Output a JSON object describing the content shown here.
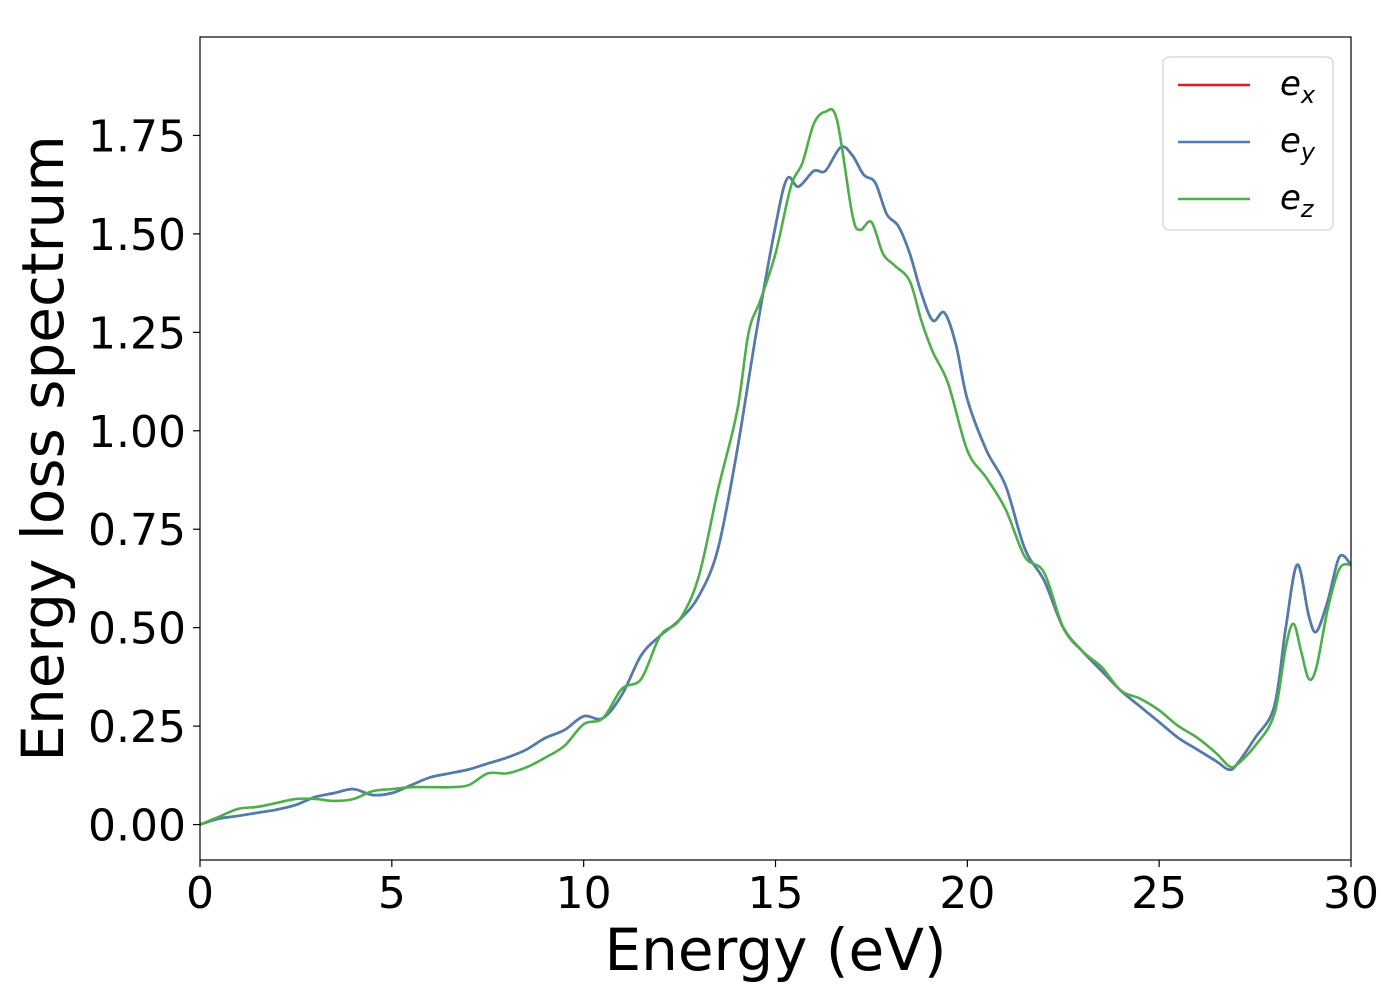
{
  "chart_data": {
    "type": "line",
    "title": "",
    "xlabel": "Energy (eV)",
    "ylabel": "Energy loss spectrum",
    "xlim": [
      0,
      30
    ],
    "ylim": [
      -0.09,
      2.0
    ],
    "xticks": [
      0,
      5,
      10,
      15,
      20,
      25,
      30
    ],
    "xtick_labels": [
      "0",
      "5",
      "10",
      "15",
      "20",
      "25",
      "30"
    ],
    "yticks": [
      0.0,
      0.25,
      0.5,
      0.75,
      1.0,
      1.25,
      1.5,
      1.75
    ],
    "ytick_labels": [
      "0.00",
      "0.25",
      "0.50",
      "0.75",
      "1.00",
      "1.25",
      "1.50",
      "1.75"
    ],
    "grid": false,
    "legend_position": "top-right",
    "series": [
      {
        "name": "e_x",
        "legend_base": "e",
        "legend_sub": "x",
        "color": "#e41a1c",
        "x": [
          0,
          0.5,
          1,
          1.5,
          2,
          2.5,
          3,
          3.5,
          4,
          4.5,
          5,
          5.5,
          6,
          6.5,
          7,
          7.5,
          8,
          8.5,
          9,
          9.5,
          10,
          10.5,
          11,
          11.5,
          12,
          12.5,
          13,
          13.5,
          14,
          14.5,
          15,
          15.3,
          15.6,
          16,
          16.3,
          16.7,
          17,
          17.3,
          17.6,
          17.9,
          18.2,
          18.5,
          18.8,
          19.1,
          19.4,
          19.7,
          20,
          20.5,
          21,
          21.5,
          22,
          22.5,
          23,
          23.5,
          24,
          24.5,
          25,
          25.5,
          26,
          26.5,
          26.8,
          27,
          27.5,
          28,
          28.3,
          28.6,
          28.9,
          29.1,
          29.4,
          29.7,
          30
        ],
        "y": [
          0.0,
          0.015,
          0.022,
          0.03,
          0.038,
          0.05,
          0.07,
          0.08,
          0.09,
          0.075,
          0.08,
          0.1,
          0.12,
          0.13,
          0.14,
          0.155,
          0.17,
          0.19,
          0.22,
          0.24,
          0.275,
          0.27,
          0.33,
          0.43,
          0.48,
          0.52,
          0.58,
          0.7,
          0.95,
          1.25,
          1.52,
          1.64,
          1.62,
          1.66,
          1.66,
          1.72,
          1.7,
          1.65,
          1.63,
          1.55,
          1.52,
          1.45,
          1.35,
          1.28,
          1.3,
          1.22,
          1.08,
          0.95,
          0.86,
          0.7,
          0.62,
          0.5,
          0.44,
          0.39,
          0.34,
          0.3,
          0.26,
          0.22,
          0.19,
          0.16,
          0.14,
          0.15,
          0.22,
          0.3,
          0.5,
          0.66,
          0.53,
          0.49,
          0.57,
          0.68,
          0.66
        ]
      },
      {
        "name": "e_y",
        "legend_base": "e",
        "legend_sub": "y",
        "color": "#4a7fb0",
        "x": [
          0,
          0.5,
          1,
          1.5,
          2,
          2.5,
          3,
          3.5,
          4,
          4.5,
          5,
          5.5,
          6,
          6.5,
          7,
          7.5,
          8,
          8.5,
          9,
          9.5,
          10,
          10.5,
          11,
          11.5,
          12,
          12.5,
          13,
          13.5,
          14,
          14.5,
          15,
          15.3,
          15.6,
          16,
          16.3,
          16.7,
          17,
          17.3,
          17.6,
          17.9,
          18.2,
          18.5,
          18.8,
          19.1,
          19.4,
          19.7,
          20,
          20.5,
          21,
          21.5,
          22,
          22.5,
          23,
          23.5,
          24,
          24.5,
          25,
          25.5,
          26,
          26.5,
          26.8,
          27,
          27.5,
          28,
          28.3,
          28.6,
          28.9,
          29.1,
          29.4,
          29.7,
          30
        ],
        "y": [
          0.0,
          0.015,
          0.022,
          0.03,
          0.038,
          0.05,
          0.07,
          0.08,
          0.09,
          0.075,
          0.08,
          0.1,
          0.12,
          0.13,
          0.14,
          0.155,
          0.17,
          0.19,
          0.22,
          0.24,
          0.275,
          0.27,
          0.33,
          0.43,
          0.48,
          0.52,
          0.58,
          0.7,
          0.95,
          1.25,
          1.52,
          1.64,
          1.62,
          1.66,
          1.66,
          1.72,
          1.7,
          1.65,
          1.63,
          1.55,
          1.52,
          1.45,
          1.35,
          1.28,
          1.3,
          1.22,
          1.08,
          0.95,
          0.86,
          0.7,
          0.62,
          0.5,
          0.44,
          0.39,
          0.34,
          0.3,
          0.26,
          0.22,
          0.19,
          0.16,
          0.14,
          0.15,
          0.22,
          0.3,
          0.5,
          0.66,
          0.53,
          0.49,
          0.57,
          0.68,
          0.66
        ]
      },
      {
        "name": "e_z",
        "legend_base": "e",
        "legend_sub": "z",
        "color": "#4daf4a",
        "x": [
          0,
          0.5,
          1,
          1.5,
          2,
          2.5,
          3,
          3.5,
          4,
          4.5,
          5,
          5.5,
          6,
          6.5,
          7,
          7.5,
          8,
          8.5,
          9,
          9.5,
          10,
          10.5,
          11,
          11.5,
          12,
          12.5,
          13,
          13.5,
          14,
          14.3,
          14.6,
          15,
          15.4,
          15.7,
          16,
          16.3,
          16.6,
          17,
          17.2,
          17.5,
          17.8,
          18.1,
          18.5,
          18.8,
          19.1,
          19.5,
          20,
          20.5,
          21,
          21.5,
          22,
          22.5,
          23,
          23.5,
          24,
          24.5,
          25,
          25.5,
          26,
          26.5,
          26.8,
          27,
          27.5,
          28,
          28.3,
          28.5,
          28.7,
          28.9,
          29.1,
          29.4,
          29.7,
          30
        ],
        "y": [
          0.0,
          0.02,
          0.04,
          0.045,
          0.055,
          0.065,
          0.065,
          0.06,
          0.065,
          0.085,
          0.09,
          0.095,
          0.095,
          0.095,
          0.1,
          0.13,
          0.13,
          0.145,
          0.17,
          0.2,
          0.255,
          0.27,
          0.345,
          0.37,
          0.48,
          0.52,
          0.63,
          0.85,
          1.05,
          1.25,
          1.33,
          1.45,
          1.62,
          1.68,
          1.78,
          1.81,
          1.79,
          1.55,
          1.51,
          1.53,
          1.45,
          1.42,
          1.38,
          1.28,
          1.2,
          1.12,
          0.95,
          0.88,
          0.8,
          0.68,
          0.64,
          0.5,
          0.44,
          0.4,
          0.34,
          0.32,
          0.29,
          0.25,
          0.22,
          0.18,
          0.15,
          0.15,
          0.2,
          0.28,
          0.45,
          0.51,
          0.44,
          0.37,
          0.4,
          0.55,
          0.65,
          0.66
        ]
      }
    ]
  }
}
